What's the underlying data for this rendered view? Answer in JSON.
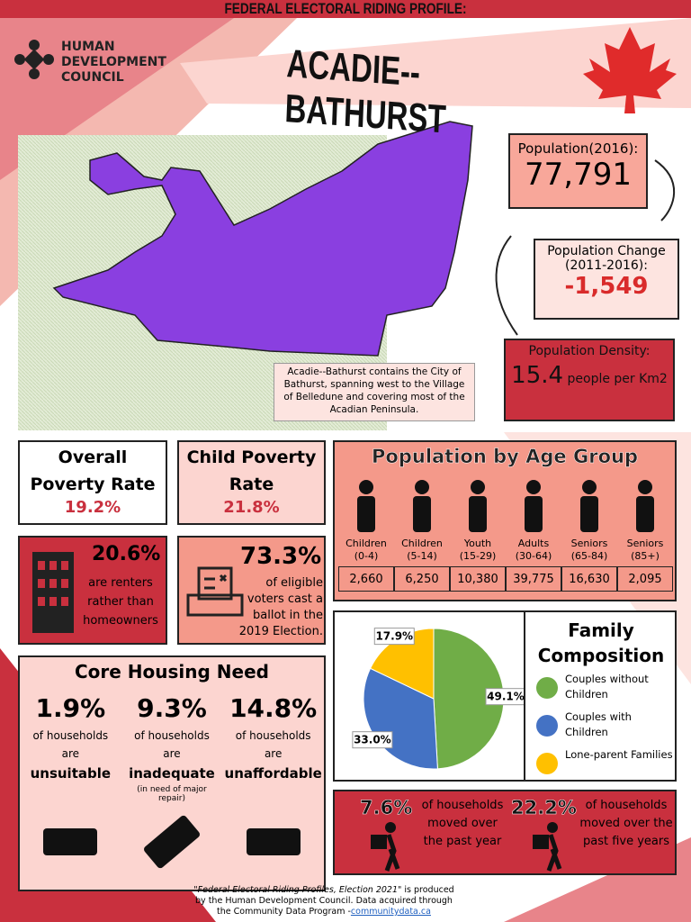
{
  "banner": "FEDERAL ELECTORAL RIDING PROFILE:",
  "org": [
    "HUMAN",
    "DEVELOPMENT",
    "COUNCIL"
  ],
  "riding": "ACADIE--BATHURST",
  "map_note": "Acadie--Bathurst contains the City of Bathurst, spanning west to the Village of Belledune and covering most of the Acadian Peninsula.",
  "population": {
    "label": "Population(2016):",
    "value": "77,791"
  },
  "change": {
    "label": "Population Change (2011-2016):",
    "value": "-1,549"
  },
  "density": {
    "label": "Population Density:",
    "value": "15.4",
    "unit": "people per Km2"
  },
  "poverty": {
    "title": "Overall Poverty Rate",
    "value": "19.2%"
  },
  "child_poverty": {
    "title": "Child Poverty Rate",
    "value": "21.8%"
  },
  "renters": {
    "value": "20.6%",
    "text": "are renters rather than homeowners"
  },
  "voters": {
    "value": "73.3%",
    "text": "of eligible voters cast a ballot in the 2019 Election."
  },
  "age": {
    "title": "Population by Age Group",
    "groups": [
      {
        "label": "Children",
        "range": "(0-4)",
        "count": "2,660"
      },
      {
        "label": "Children",
        "range": "(5-14)",
        "count": "6,250"
      },
      {
        "label": "Youth",
        "range": "(15-29)",
        "count": "10,380"
      },
      {
        "label": "Adults",
        "range": "(30-64)",
        "count": "39,775"
      },
      {
        "label": "Seniors",
        "range": "(65-84)",
        "count": "16,630"
      },
      {
        "label": "Seniors",
        "range": "(85+)",
        "count": "2,095"
      }
    ]
  },
  "housing": {
    "title": "Core Housing Need",
    "items": [
      {
        "value": "1.9%",
        "text": "of households",
        "are": "are",
        "kind": "unsuitable"
      },
      {
        "value": "9.3%",
        "text": "of households",
        "are": "are",
        "kind": "inadequate",
        "note": "(in need of major repair)"
      },
      {
        "value": "14.8%",
        "text": "of households",
        "are": "are",
        "kind": "unaffordable"
      }
    ]
  },
  "family": {
    "title": "Family Composition",
    "slices": [
      {
        "name": "Couples without Children",
        "value": 49.1,
        "label": "49.1%",
        "color": "#70ad47"
      },
      {
        "name": "Couples with Children",
        "value": 33.0,
        "label": "33.0%",
        "color": "#4472c4"
      },
      {
        "name": "Lone-parent Families",
        "value": 17.9,
        "label": "17.9%",
        "color": "#ffc000"
      }
    ]
  },
  "moved": [
    {
      "value": "7.6%",
      "text": "of households moved over the past year"
    },
    {
      "value": "22.2%",
      "text": "of households moved over the past five years"
    }
  ],
  "footer": {
    "title": "\"Federal Electoral Riding Profiles, Election 2021\"",
    "text": " is produced by the Human Development Council. Data acquired through the Community Data Program -",
    "link": "communitydata.ca"
  }
}
